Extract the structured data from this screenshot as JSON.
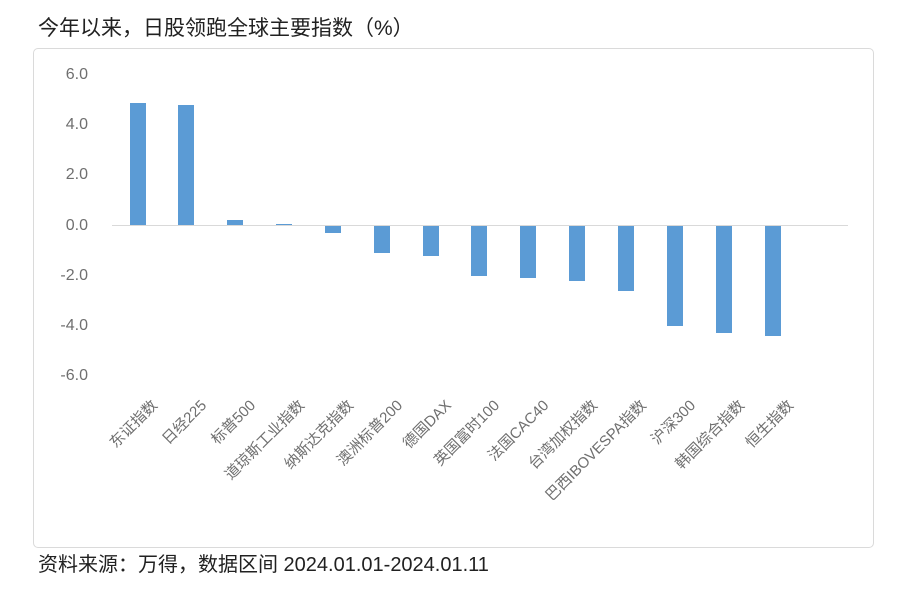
{
  "title": "今年以来，日股领跑全球主要指数（%）",
  "source_note": "资料来源：万得，数据区间 2024.01.01-2024.01.11",
  "colors": {
    "bar": "#5B9BD5",
    "axis_line": "#D9D9D9",
    "frame_border": "#DADADA",
    "tick_label": "#6F6F6F",
    "text": "#212121",
    "background": "#FFFFFF"
  },
  "chart_data": {
    "type": "bar",
    "title": "今年以来，日股领跑全球主要指数（%）",
    "unit": "%",
    "categories": [
      "东证指数",
      "日经225",
      "标普500",
      "道琼斯工业指数",
      "纳斯达克指数",
      "澳洲标普200",
      "德国DAX",
      "英国富时100",
      "法国CAC40",
      "台湾加权指数",
      "巴西IBOVESPA指数",
      "沪深300",
      "韩国综合指数",
      "恒生指数"
    ],
    "values": [
      4.9,
      4.8,
      0.2,
      0.05,
      -0.3,
      -1.1,
      -1.2,
      -2.0,
      -2.1,
      -2.2,
      -2.6,
      -4.0,
      -4.3,
      -4.4
    ],
    "xlabel": "",
    "ylabel": "",
    "ylim": [
      -6.0,
      6.0
    ],
    "yticks": [
      6.0,
      4.0,
      2.0,
      0.0,
      -2.0,
      -4.0,
      -6.0
    ],
    "ytick_labels": [
      "6.0",
      "4.0",
      "2.0",
      "0.0",
      "-2.0",
      "-4.0",
      "-6.0"
    ],
    "grid": false,
    "legend": "none",
    "bar_color": "#5B9BD5",
    "x_label_rotation_deg": 45,
    "source": "资料来源：万得，数据区间 2024.01.01-2024.01.11"
  }
}
